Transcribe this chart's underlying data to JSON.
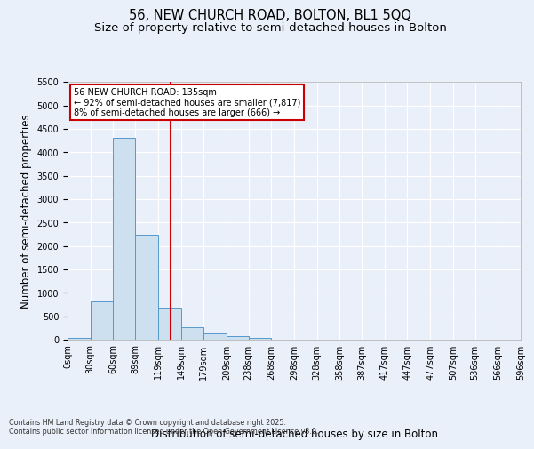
{
  "title1": "56, NEW CHURCH ROAD, BOLTON, BL1 5QQ",
  "title2": "Size of property relative to semi-detached houses in Bolton",
  "xlabel": "Distribution of semi-detached houses by size in Bolton",
  "ylabel": "Number of semi-detached properties",
  "footnote": "Contains HM Land Registry data © Crown copyright and database right 2025.\nContains public sector information licensed under the Open Government Licence v3.0.",
  "bar_edges": [
    0,
    30,
    60,
    89,
    119,
    149,
    179,
    209,
    238,
    268,
    298,
    328,
    358,
    387,
    417,
    447,
    477,
    507,
    536,
    566,
    596
  ],
  "bar_labels": [
    "0sqm",
    "30sqm",
    "60sqm",
    "89sqm",
    "119sqm",
    "149sqm",
    "179sqm",
    "209sqm",
    "238sqm",
    "268sqm",
    "298sqm",
    "328sqm",
    "358sqm",
    "387sqm",
    "417sqm",
    "447sqm",
    "477sqm",
    "507sqm",
    "536sqm",
    "566sqm",
    "596sqm"
  ],
  "bar_heights": [
    50,
    820,
    4300,
    2250,
    680,
    270,
    130,
    80,
    50,
    0,
    0,
    0,
    0,
    0,
    0,
    0,
    0,
    0,
    0,
    0
  ],
  "bar_color": "#cce0f0",
  "bar_edge_color": "#5599cc",
  "vline_x": 135,
  "vline_color": "#cc0000",
  "ylim": [
    0,
    5500
  ],
  "yticks": [
    0,
    500,
    1000,
    1500,
    2000,
    2500,
    3000,
    3500,
    4000,
    4500,
    5000,
    5500
  ],
  "bg_color": "#eaf0fa",
  "grid_color": "#ffffff",
  "annotation_title": "56 NEW CHURCH ROAD: 135sqm",
  "annotation_line1": "← 92% of semi-detached houses are smaller (7,817)",
  "annotation_line2": "8% of semi-detached houses are larger (666) →",
  "annotation_box_color": "#cc0000",
  "title_fontsize": 10.5,
  "subtitle_fontsize": 9.5,
  "tick_fontsize": 7,
  "label_fontsize": 8.5,
  "footnote_fontsize": 5.8
}
